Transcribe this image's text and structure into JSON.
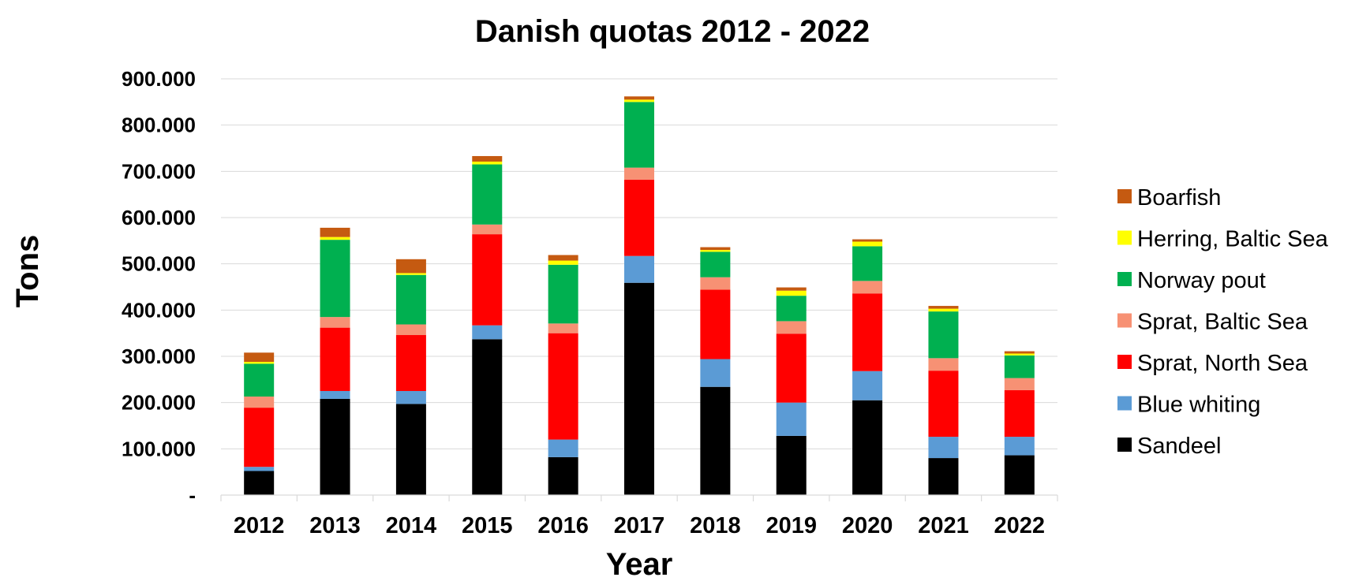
{
  "chart_data": {
    "type": "bar",
    "stacked": true,
    "title": "Danish quotas 2012 - 2022",
    "xlabel": "Year",
    "ylabel": "Tons",
    "ylim": [
      0,
      900000
    ],
    "yticks": [
      "-",
      "100.000",
      "200.000",
      "300.000",
      "400.000",
      "500.000",
      "600.000",
      "700.000",
      "800.000",
      "900.000"
    ],
    "categories": [
      "2012",
      "2013",
      "2014",
      "2015",
      "2016",
      "2017",
      "2018",
      "2019",
      "2020",
      "2021",
      "2022"
    ],
    "grid": true,
    "legend_position": "right",
    "series": [
      {
        "name": "Sandeel",
        "color": "#000000",
        "values": [
          52000,
          208000,
          197000,
          337000,
          82000,
          459000,
          234000,
          128000,
          205000,
          80000,
          86000
        ]
      },
      {
        "name": "Blue whiting",
        "color": "#5b9bd5",
        "values": [
          9000,
          17000,
          28000,
          30000,
          38000,
          58000,
          60000,
          72000,
          63000,
          46000,
          40000
        ]
      },
      {
        "name": "Sprat, North Sea",
        "color": "#ff0000",
        "values": [
          128000,
          137000,
          121000,
          197000,
          230000,
          165000,
          150000,
          149000,
          168000,
          143000,
          101000
        ]
      },
      {
        "name": "Sprat, Baltic Sea",
        "color": "#f79174",
        "values": [
          24000,
          23000,
          23000,
          21000,
          21000,
          26000,
          27000,
          27000,
          27000,
          27000,
          26000
        ]
      },
      {
        "name": "Norway pout",
        "color": "#00b050",
        "values": [
          71000,
          167000,
          107000,
          130000,
          127000,
          142000,
          55000,
          55000,
          75000,
          101000,
          49000
        ]
      },
      {
        "name": "Herring, Baltic Sea",
        "color": "#ffff00",
        "values": [
          4000,
          6000,
          4000,
          6000,
          9000,
          5000,
          4000,
          11000,
          10000,
          6000,
          4000
        ]
      },
      {
        "name": "Boarfish",
        "color": "#c55a11",
        "values": [
          20000,
          20000,
          30000,
          12000,
          12000,
          7000,
          6000,
          7000,
          5000,
          6000,
          5000
        ]
      }
    ]
  }
}
